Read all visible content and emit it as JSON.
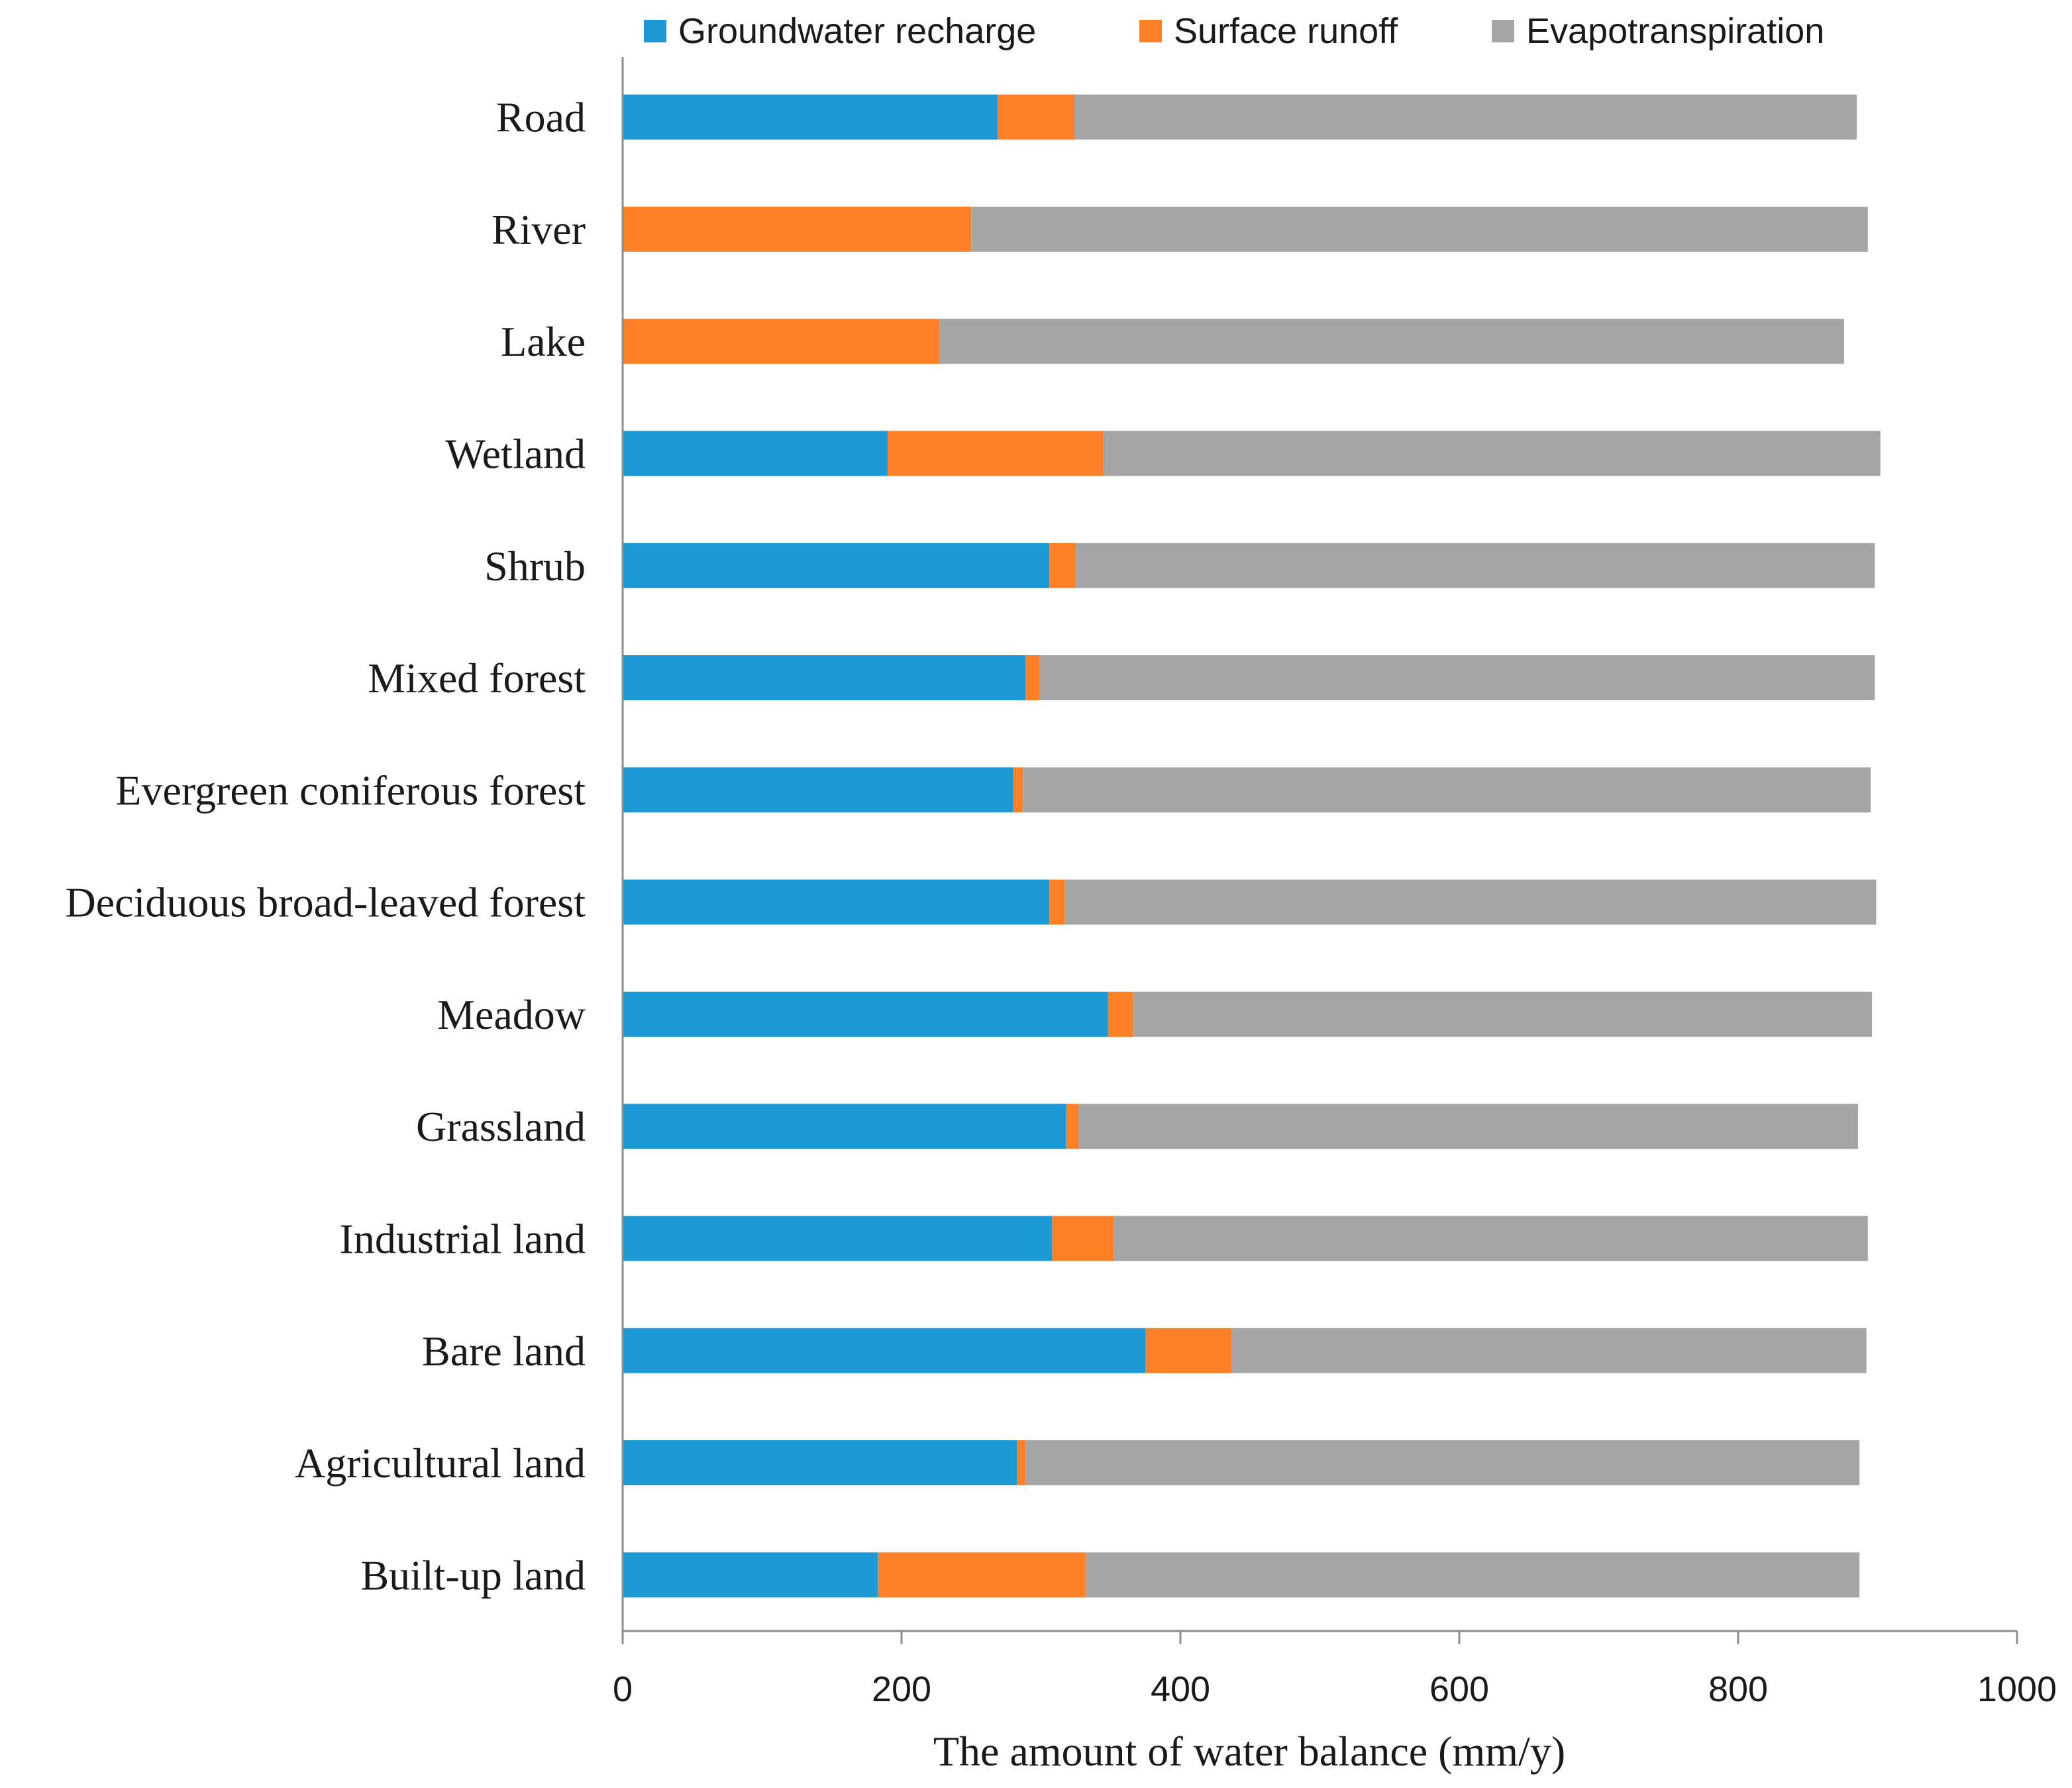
{
  "chart_data": {
    "type": "bar",
    "orientation": "horizontal",
    "stacked": true,
    "title": "",
    "xlabel": "The amount of water balance (mm/y)",
    "ylabel": "",
    "xlim": [
      0,
      1000
    ],
    "xticks": [
      0,
      200,
      400,
      600,
      800,
      1000
    ],
    "grid": false,
    "legend_position": "top",
    "categories": [
      "Road",
      "River",
      "Lake",
      "Wetland",
      "Shrub",
      "Mixed forest",
      "Evergreen coniferous forest",
      "Deciduous broad-leaved forest",
      "Meadow",
      "Grassland",
      "Industrial land",
      "Bare land",
      "Agricultural land",
      "Built-up land"
    ],
    "series": [
      {
        "name": "Groundwater recharge",
        "color": "#1b9ad6",
        "values": [
          269,
          0,
          0,
          190,
          306,
          289,
          280,
          306,
          348,
          318,
          308,
          375,
          283,
          183
        ]
      },
      {
        "name": "Surface runoff",
        "color": "#ff8027",
        "values": [
          55,
          250,
          227,
          155,
          19,
          10,
          7,
          11,
          18,
          9,
          44,
          62,
          6,
          149
        ]
      },
      {
        "name": "Evapotranspiration",
        "color": "#a5a5a5",
        "values": [
          561,
          643,
          649,
          557,
          573,
          599,
          608,
          582,
          530,
          559,
          541,
          455,
          598,
          555
        ]
      }
    ]
  }
}
